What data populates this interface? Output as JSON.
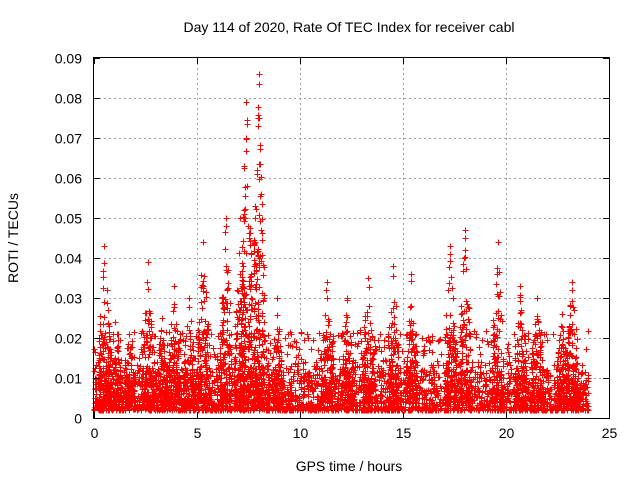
{
  "chart_data": {
    "type": "scatter",
    "title": "Day 114 of 2020, Rate Of TEC Index for receiver cabl",
    "xlabel": "GPS time / hours",
    "ylabel": "ROTI / TECUs",
    "xlim": [
      0,
      25
    ],
    "ylim": [
      0,
      0.09
    ],
    "xticks": [
      "0",
      "5",
      "10",
      "15",
      "20",
      "25"
    ],
    "yticks": [
      "0",
      "0.01",
      "0.02",
      "0.03",
      "0.04",
      "0.05",
      "0.06",
      "0.07",
      "0.08",
      "0.09"
    ],
    "grid": true,
    "marker": "+",
    "color": "#ff0000",
    "series": [
      {
        "name": "ROTI",
        "x_range": [
          0,
          24
        ],
        "background_band": [
          0.002,
          0.015
        ],
        "bursts": [
          {
            "x": 0.5,
            "peak": 0.043
          },
          {
            "x": 1.0,
            "peak": 0.024
          },
          {
            "x": 1.7,
            "peak": 0.021
          },
          {
            "x": 2.6,
            "peak": 0.039
          },
          {
            "x": 3.3,
            "peak": 0.025
          },
          {
            "x": 3.9,
            "peak": 0.033
          },
          {
            "x": 4.6,
            "peak": 0.03
          },
          {
            "x": 5.3,
            "peak": 0.044
          },
          {
            "x": 6.4,
            "peak": 0.05
          },
          {
            "x": 7.1,
            "peak": 0.05
          },
          {
            "x": 7.4,
            "peak": 0.079
          },
          {
            "x": 8.0,
            "peak": 0.086
          },
          {
            "x": 8.9,
            "peak": 0.03
          },
          {
            "x": 11.3,
            "peak": 0.034
          },
          {
            "x": 12.3,
            "peak": 0.03
          },
          {
            "x": 13.3,
            "peak": 0.035
          },
          {
            "x": 14.5,
            "peak": 0.038
          },
          {
            "x": 15.4,
            "peak": 0.036
          },
          {
            "x": 17.3,
            "peak": 0.043
          },
          {
            "x": 18.0,
            "peak": 0.047
          },
          {
            "x": 19.6,
            "peak": 0.044
          },
          {
            "x": 20.7,
            "peak": 0.033
          },
          {
            "x": 21.5,
            "peak": 0.03
          },
          {
            "x": 22.7,
            "peak": 0.026
          },
          {
            "x": 23.2,
            "peak": 0.034
          }
        ]
      }
    ]
  }
}
